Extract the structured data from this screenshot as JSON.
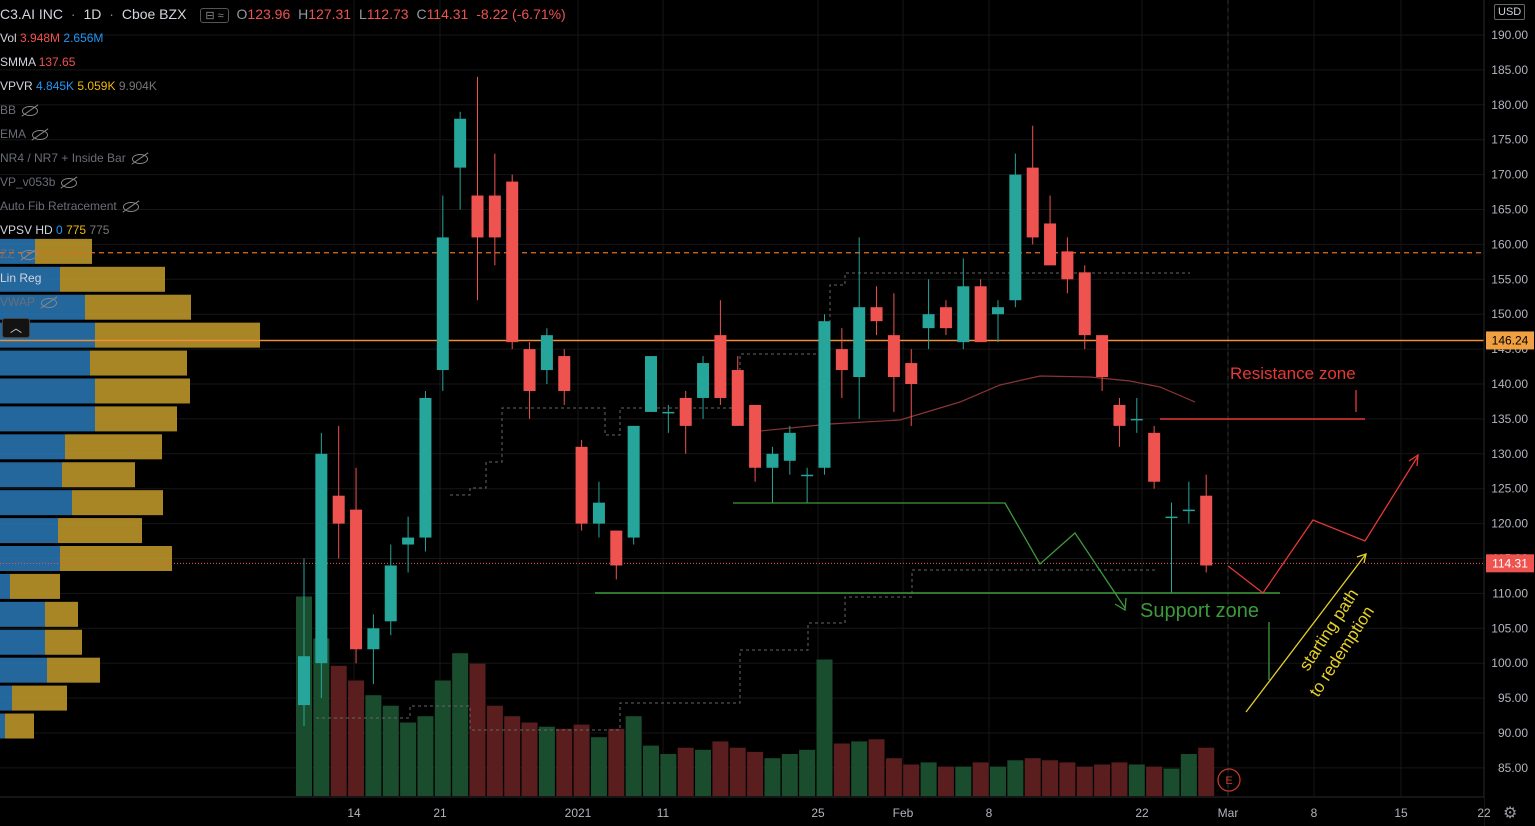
{
  "header": {
    "symbol": "C3.AI INC",
    "interval": "1D",
    "exchange": "Cboe BZX",
    "open_label": "O",
    "open": "123.96",
    "high_label": "H",
    "high": "127.31",
    "low_label": "L",
    "low": "112.73",
    "close_label": "C",
    "close": "114.31",
    "change": "-8.22 (-6.71%)"
  },
  "indicators": {
    "vol": {
      "name": "Vol",
      "v1": "3.948M",
      "v2": "2.656M"
    },
    "smma": {
      "name": "SMMA",
      "v1": "137.65"
    },
    "vpvr": {
      "name": "VPVR",
      "v1": "4.845K",
      "v2": "5.059K",
      "v3": "9.904K"
    },
    "bb": {
      "name": "BB"
    },
    "ema": {
      "name": "EMA"
    },
    "nr": {
      "name": "NR4 / NR7 + Inside Bar"
    },
    "vp": {
      "name": "VP_v053b"
    },
    "fib": {
      "name": "Auto Fib Retracement"
    },
    "vpsv": {
      "name": "VPSV HD",
      "v1": "0",
      "v2": "775",
      "v3": "775"
    },
    "zz": {
      "name": "ZZ"
    },
    "linreg": {
      "name": "Lin Reg"
    },
    "vwap": {
      "name": "VWAP"
    }
  },
  "currency": "USD",
  "colors": {
    "up": "#26a69a",
    "down": "#ef5350",
    "vol_up": "#1a4d2e",
    "vol_down": "#5a1e1e",
    "vp_blue": "#2979b8",
    "vp_gold": "#c59c2b",
    "resistance": "#f08c3a",
    "support": "#3c9a3c",
    "annotation_red": "#e53935",
    "annotation_yellow": "#e6d12a",
    "last_price": "#ef5350"
  },
  "chart_data": {
    "type": "candlestick",
    "ylim": [
      81,
      193
    ],
    "yticks": [
      "190.00",
      "185.00",
      "180.00",
      "175.00",
      "170.00",
      "165.00",
      "160.00",
      "155.00",
      "150.00",
      "145.00",
      "140.00",
      "135.00",
      "130.00",
      "125.00",
      "120.00",
      "115.00",
      "110.00",
      "105.00",
      "100.00",
      "95.00",
      "90.00",
      "85.00"
    ],
    "xticks": [
      "14",
      "21",
      "2021",
      "11",
      "25",
      "Feb",
      "8",
      "22",
      "Mar",
      "8",
      "15",
      "22"
    ],
    "last_price": "114.31",
    "resistance_price": "146.24",
    "candles": [
      {
        "o": 94,
        "h": 115,
        "l": 91,
        "c": 101
      },
      {
        "o": 100,
        "h": 133,
        "l": 95,
        "c": 130
      },
      {
        "o": 124,
        "h": 134,
        "l": 115,
        "c": 120
      },
      {
        "o": 122,
        "h": 128,
        "l": 100,
        "c": 102
      },
      {
        "o": 102,
        "h": 107,
        "l": 97,
        "c": 105
      },
      {
        "o": 106,
        "h": 117,
        "l": 104,
        "c": 114
      },
      {
        "o": 117,
        "h": 121,
        "l": 113,
        "c": 118
      },
      {
        "o": 118,
        "h": 139,
        "l": 116,
        "c": 138
      },
      {
        "o": 142,
        "h": 167,
        "l": 139,
        "c": 161
      },
      {
        "o": 171,
        "h": 179,
        "l": 165,
        "c": 178
      },
      {
        "o": 167,
        "h": 184,
        "l": 152,
        "c": 161
      },
      {
        "o": 167,
        "h": 173,
        "l": 157,
        "c": 161
      },
      {
        "o": 169,
        "h": 170,
        "l": 145,
        "c": 146
      },
      {
        "o": 145,
        "h": 146,
        "l": 135,
        "c": 139
      },
      {
        "o": 142,
        "h": 148,
        "l": 140,
        "c": 147
      },
      {
        "o": 144,
        "h": 145,
        "l": 137,
        "c": 139
      },
      {
        "o": 131,
        "h": 132,
        "l": 119,
        "c": 120
      },
      {
        "o": 120,
        "h": 126,
        "l": 118,
        "c": 123
      },
      {
        "o": 119,
        "h": 119,
        "l": 112,
        "c": 114
      },
      {
        "o": 118,
        "h": 134,
        "l": 117,
        "c": 134
      },
      {
        "o": 136,
        "h": 144,
        "l": 136,
        "c": 144
      },
      {
        "o": 136,
        "h": 137,
        "l": 133,
        "c": 136
      },
      {
        "o": 138,
        "h": 139,
        "l": 130,
        "c": 134
      },
      {
        "o": 138,
        "h": 144,
        "l": 135,
        "c": 143
      },
      {
        "o": 147,
        "h": 152,
        "l": 137,
        "c": 138
      },
      {
        "o": 142,
        "h": 144,
        "l": 134,
        "c": 134
      },
      {
        "o": 137,
        "h": 137,
        "l": 126,
        "c": 128
      },
      {
        "o": 128,
        "h": 131,
        "l": 123,
        "c": 130
      },
      {
        "o": 129,
        "h": 134,
        "l": 127,
        "c": 133
      },
      {
        "o": 127,
        "h": 128,
        "l": 123,
        "c": 127
      },
      {
        "o": 128,
        "h": 150,
        "l": 127,
        "c": 149
      },
      {
        "o": 145,
        "h": 148,
        "l": 138,
        "c": 142
      },
      {
        "o": 141,
        "h": 161,
        "l": 135,
        "c": 151
      },
      {
        "o": 151,
        "h": 154,
        "l": 147,
        "c": 149
      },
      {
        "o": 147,
        "h": 153,
        "l": 136,
        "c": 141
      },
      {
        "o": 143,
        "h": 145,
        "l": 134,
        "c": 140
      },
      {
        "o": 148,
        "h": 155,
        "l": 145,
        "c": 150
      },
      {
        "o": 151,
        "h": 152,
        "l": 147,
        "c": 148
      },
      {
        "o": 146,
        "h": 158,
        "l": 145,
        "c": 154
      },
      {
        "o": 154,
        "h": 155,
        "l": 146,
        "c": 146
      },
      {
        "o": 150,
        "h": 152,
        "l": 146,
        "c": 151
      },
      {
        "o": 152,
        "h": 173,
        "l": 151,
        "c": 170
      },
      {
        "o": 171,
        "h": 177,
        "l": 160,
        "c": 161
      },
      {
        "o": 163,
        "h": 167,
        "l": 157,
        "c": 157
      },
      {
        "o": 159,
        "h": 161,
        "l": 153,
        "c": 155
      },
      {
        "o": 156,
        "h": 157,
        "l": 145,
        "c": 147
      },
      {
        "o": 147,
        "h": 147,
        "l": 139,
        "c": 141
      },
      {
        "o": 137,
        "h": 138,
        "l": 131,
        "c": 134
      },
      {
        "o": 135,
        "h": 138,
        "l": 133,
        "c": 135
      },
      {
        "o": 133,
        "h": 134,
        "l": 125,
        "c": 126
      },
      {
        "o": 121,
        "h": 123,
        "l": 110,
        "c": 121
      },
      {
        "o": 122,
        "h": 126,
        "l": 120,
        "c": 122
      },
      {
        "o": 124,
        "h": 127,
        "l": 113,
        "c": 114
      }
    ],
    "volumes": [
      9.5,
      7.5,
      6.2,
      5.5,
      4.8,
      4.3,
      3.5,
      3.8,
      5.5,
      6.8,
      6.3,
      4.3,
      3.8,
      3.5,
      3.3,
      3.2,
      3.4,
      2.8,
      3.2,
      3.8,
      2.4,
      2.0,
      2.3,
      2.2,
      2.6,
      2.3,
      2.1,
      1.8,
      2.0,
      2.2,
      6.5,
      2.5,
      2.6,
      2.7,
      1.8,
      1.5,
      1.6,
      1.4,
      1.4,
      1.6,
      1.4,
      1.7,
      1.8,
      1.7,
      1.6,
      1.4,
      1.5,
      1.6,
      1.5,
      1.4,
      1.3,
      2.0,
      2.3
    ],
    "volume_profile": [
      {
        "price": 159,
        "blue": 35,
        "gold": 92
      },
      {
        "price": 155,
        "blue": 60,
        "gold": 165
      },
      {
        "price": 151,
        "blue": 85,
        "gold": 191
      },
      {
        "price": 147,
        "blue": 95,
        "gold": 260
      },
      {
        "price": 143,
        "blue": 90,
        "gold": 187
      },
      {
        "price": 139,
        "blue": 95,
        "gold": 190
      },
      {
        "price": 135,
        "blue": 95,
        "gold": 177
      },
      {
        "price": 131,
        "blue": 65,
        "gold": 162
      },
      {
        "price": 127,
        "blue": 62,
        "gold": 135
      },
      {
        "price": 123,
        "blue": 72,
        "gold": 163
      },
      {
        "price": 119,
        "blue": 58,
        "gold": 142
      },
      {
        "price": 115,
        "blue": 60,
        "gold": 172
      },
      {
        "price": 111,
        "blue": 10,
        "gold": 60
      },
      {
        "price": 107,
        "blue": 45,
        "gold": 78
      },
      {
        "price": 103,
        "blue": 45,
        "gold": 82
      },
      {
        "price": 99,
        "blue": 47,
        "gold": 100
      },
      {
        "price": 95,
        "blue": 12,
        "gold": 67
      },
      {
        "price": 91,
        "blue": 5,
        "gold": 34
      }
    ],
    "annotations": {
      "resistance_label": "Resistance zone",
      "support_label": "Support zone",
      "path_line1": "starting path",
      "path_line2": "to redemption",
      "earnings_marker": "E"
    }
  }
}
